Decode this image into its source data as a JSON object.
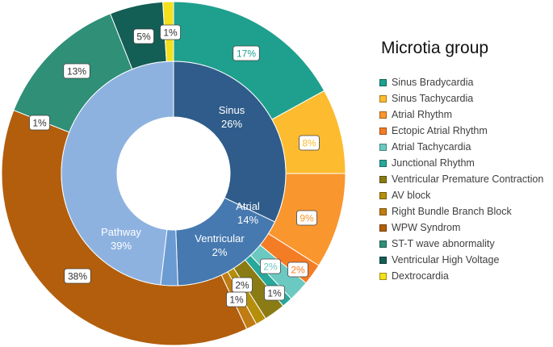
{
  "chart_data": {
    "type": "pie",
    "title": "Microtia group",
    "outer_ring": [
      {
        "name": "Sinus Bradycardia",
        "value": 17,
        "label": "17%",
        "color": "#1FA08E"
      },
      {
        "name": "Sinus Tachycardia",
        "value": 8,
        "label": "8%",
        "color": "#FDBB2F"
      },
      {
        "name": "Atrial Rhythm",
        "value": 9,
        "label": "9%",
        "color": "#F9962E"
      },
      {
        "name": "Ectopic Atrial Rhythm",
        "value": 2,
        "label": "2%",
        "color": "#F47C24"
      },
      {
        "name": "Atrial Tachycardia",
        "value": 2,
        "label": "2%",
        "color": "#6BC9C1"
      },
      {
        "name": "Junctional Rhythm",
        "value": 1,
        "label": "1%",
        "color": "#27A89A"
      },
      {
        "name": "Ventricular Premature Contraction",
        "value": 2,
        "label": "2%",
        "color": "#8A7B14"
      },
      {
        "name": "AV block",
        "value": 1,
        "label": "1%",
        "color": "#B58E0B"
      },
      {
        "name": "Right Bundle Branch Block",
        "value": 1,
        "label": "1%",
        "color": "#C07C12"
      },
      {
        "name": "WPW Syndrom",
        "value": 38,
        "label": "38%",
        "color": "#B25E0C"
      },
      {
        "name": "ST-T wave abnormality",
        "value": 13,
        "label": "13%",
        "color": "#2F8F77"
      },
      {
        "name": "Ventricular High Voltage",
        "value": 5,
        "label": "5%",
        "color": "#135E55"
      },
      {
        "name": "Dextrocardia",
        "value": 1,
        "label": "1%",
        "color": "#F4E01C"
      }
    ],
    "inner_ring": [
      {
        "name": "Sinus",
        "value": 26,
        "label": "26%",
        "color": "#2F5C8A"
      },
      {
        "name": "Atrial",
        "value": 14,
        "label": "14%",
        "color": "#4679B0"
      },
      {
        "name": "Ventricular",
        "value": 2,
        "label": "2%",
        "color": "#6A9BD2"
      },
      {
        "name": "Pathway",
        "value": 39,
        "label": "39%",
        "color": "#8EB2E0"
      }
    ],
    "legend_placement": "right"
  }
}
